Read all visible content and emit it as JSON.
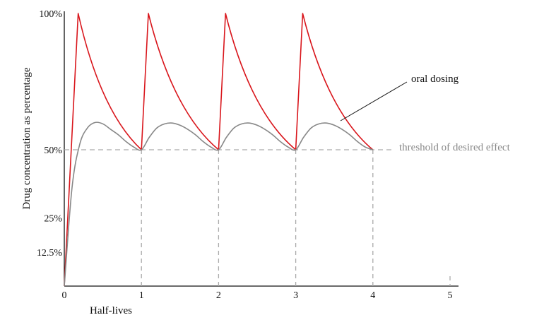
{
  "chart_data": {
    "type": "line",
    "xlabel": "Half-lives",
    "ylabel": "Drug concentration as percentage",
    "xlim": [
      0,
      5
    ],
    "ylim": [
      0,
      100
    ],
    "x_ticks": [
      "0",
      "1",
      "2",
      "3",
      "4",
      "5"
    ],
    "y_ticks": [
      {
        "value": 100,
        "label": "100%"
      },
      {
        "value": 50,
        "label": "50%"
      },
      {
        "value": 25,
        "label": "25%"
      },
      {
        "value": 12.5,
        "label": "12.5%"
      }
    ],
    "grid": false,
    "threshold": {
      "value": 50,
      "label": "threshold of desired effect"
    },
    "annotations": [
      {
        "text": "oral dosing",
        "target": "gray curve"
      }
    ],
    "series": [
      {
        "color": "#d9161c",
        "x": [
          0,
          0.18,
          1.0,
          1.09,
          2.0,
          2.09,
          3.0,
          3.09,
          4.0
        ],
        "y": [
          0,
          100,
          50,
          100,
          50,
          100,
          50,
          100,
          50
        ]
      },
      {
        "name": "oral dosing",
        "color": "#888888",
        "x": [
          0,
          0.1,
          0.2,
          0.3,
          0.4,
          0.5,
          0.6,
          0.7,
          0.8,
          0.9,
          1.0,
          1.1,
          1.2,
          1.3,
          1.4,
          1.5,
          1.6,
          1.7,
          1.8,
          1.9,
          2.0,
          2.1,
          2.2,
          2.3,
          2.4,
          2.5,
          2.6,
          2.7,
          2.8,
          2.9,
          3.0,
          3.1,
          3.2,
          3.3,
          3.4,
          3.5,
          3.6,
          3.7,
          3.8,
          3.9,
          4.0
        ],
        "y": [
          0,
          36,
          52,
          58,
          60,
          59.5,
          57.5,
          55.5,
          53,
          51,
          50,
          54.5,
          58,
          59.5,
          59.8,
          59,
          57.5,
          55.5,
          53,
          51,
          50,
          54.5,
          58,
          59.5,
          59.8,
          59,
          57.5,
          55.5,
          53,
          51,
          50,
          54.5,
          58,
          59.5,
          59.8,
          59,
          57.5,
          55.5,
          53,
          51,
          50
        ]
      }
    ]
  }
}
